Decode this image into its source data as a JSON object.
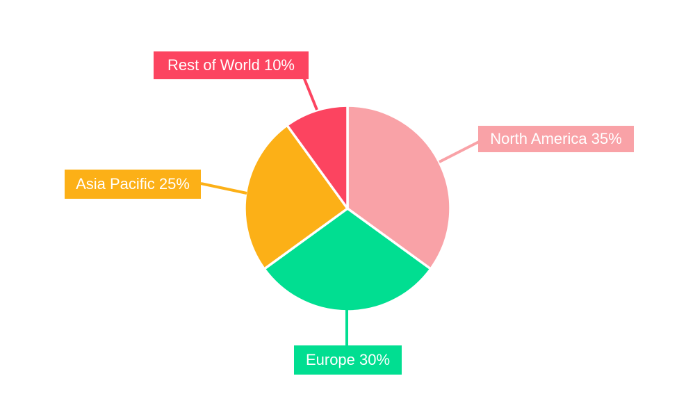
{
  "figure": {
    "background": "#FFFFFF"
  },
  "chart_data": {
    "type": "pie",
    "categories": [
      "North America",
      "Europe",
      "Asia Pacific",
      "Rest of World"
    ],
    "values": [
      35,
      30,
      25,
      10
    ],
    "value_unit": "%",
    "colors": [
      "#F9A2A7",
      "#01DE91",
      "#FCB017",
      "#FC4460"
    ],
    "callout_labels": [
      "North America 35%",
      "Europe 30%",
      "Asia Pacific 25%",
      "Rest of World 10%"
    ],
    "callout_text_color": "#FFFFFF",
    "slice_separator_color": "#FFFFFF",
    "start_angle": "12-oclock",
    "direction": "clockwise",
    "legend_position": "external-callouts"
  }
}
